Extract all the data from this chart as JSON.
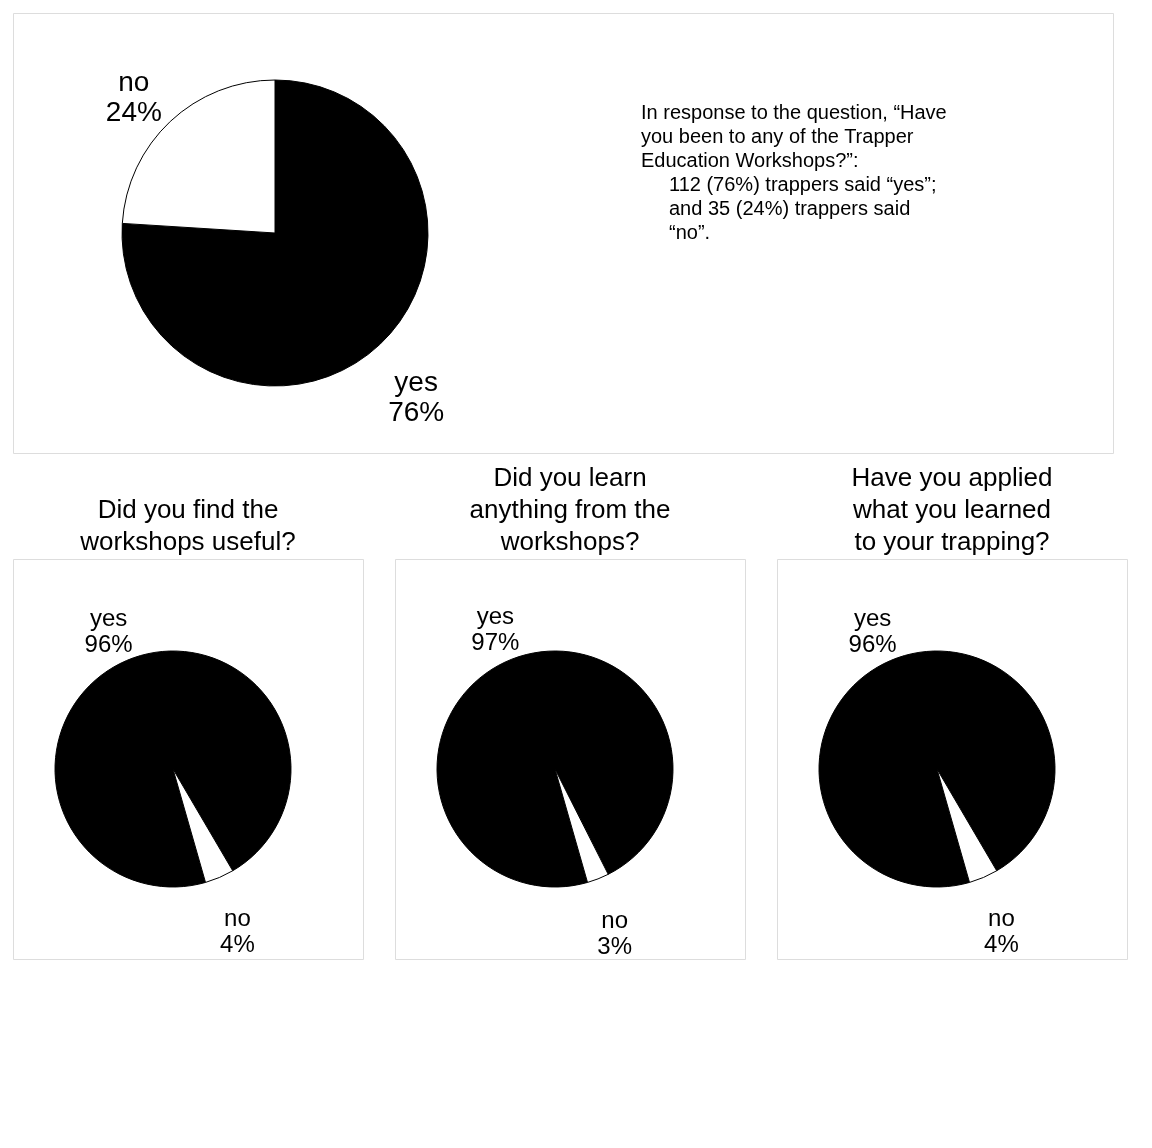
{
  "chart_data": [
    {
      "type": "pie",
      "categories": [
        "yes",
        "no"
      ],
      "values": [
        76,
        24
      ],
      "value_labels": [
        "76%",
        "24%"
      ],
      "colors": [
        "#000000",
        "#ffffff"
      ],
      "annotations": [
        "In response to the question, “Have you been to any of the Trapper Education Workshops?”:",
        "112 (76%) trappers said “yes”;",
        "and 35 (24%) trappers said “no”."
      ]
    },
    {
      "type": "pie",
      "title": "Did you find the workshops useful?",
      "categories": [
        "yes",
        "no"
      ],
      "values": [
        96,
        4
      ],
      "value_labels": [
        "96%",
        "4%"
      ],
      "colors": [
        "#000000",
        "#ffffff"
      ]
    },
    {
      "type": "pie",
      "title": "Did you learn anything from the workshops?",
      "categories": [
        "yes",
        "no"
      ],
      "values": [
        97,
        3
      ],
      "value_labels": [
        "97%",
        "3%"
      ],
      "colors": [
        "#000000",
        "#ffffff"
      ]
    },
    {
      "type": "pie",
      "title": "Have you applied what you learned to your trapping?",
      "categories": [
        "yes",
        "no"
      ],
      "values": [
        96,
        4
      ],
      "value_labels": [
        "96%",
        "4%"
      ],
      "colors": [
        "#000000",
        "#ffffff"
      ]
    }
  ]
}
